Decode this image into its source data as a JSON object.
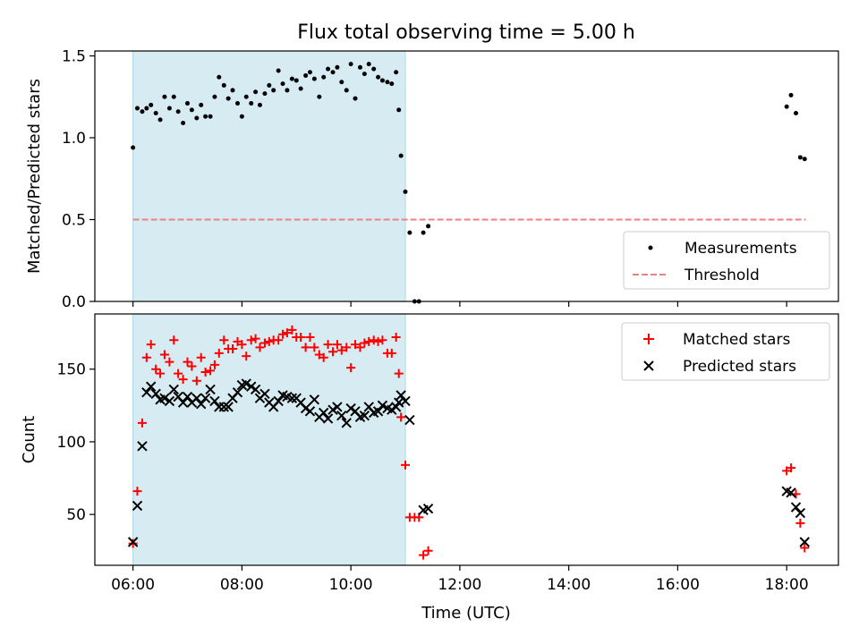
{
  "figure": {
    "title": "Flux total observing time = 5.00 h",
    "xlabel": "Time (UTC)",
    "x_ticks": [
      "06:00",
      "08:00",
      "10:00",
      "12:00",
      "14:00",
      "16:00",
      "18:00"
    ],
    "x_tick_hours": [
      6,
      8,
      10,
      12,
      14,
      16,
      18
    ],
    "xlim_hours": [
      5.3,
      18.95
    ],
    "observing_window_hours": [
      6.0,
      11.0
    ],
    "observing_window_color": "#add8e6"
  },
  "chart_data": [
    {
      "type": "scatter",
      "ylabel": "Matched/Predicted stars",
      "ylim": [
        0,
        1.53
      ],
      "y_ticks": [
        0.0,
        0.5,
        1.0,
        1.5
      ],
      "y_tick_labels": [
        "0.0",
        "0.5",
        "1.0",
        "1.5"
      ],
      "legend": {
        "placement": "lower-right",
        "entries": [
          "Measurements",
          "Threshold"
        ]
      },
      "threshold": {
        "name": "Threshold",
        "value": 0.5,
        "x_range": [
          6.0,
          18.35
        ],
        "color": "#f08080",
        "style": "dashed"
      },
      "series": [
        {
          "name": "Measurements",
          "marker": "dot",
          "color": "#000000",
          "points": [
            [
              6.0,
              0.94
            ],
            [
              6.08,
              1.18
            ],
            [
              6.17,
              1.16
            ],
            [
              6.25,
              1.18
            ],
            [
              6.33,
              1.2
            ],
            [
              6.42,
              1.15
            ],
            [
              6.5,
              1.11
            ],
            [
              6.58,
              1.25
            ],
            [
              6.67,
              1.18
            ],
            [
              6.75,
              1.25
            ],
            [
              6.83,
              1.16
            ],
            [
              6.92,
              1.09
            ],
            [
              7.0,
              1.21
            ],
            [
              7.08,
              1.17
            ],
            [
              7.17,
              1.12
            ],
            [
              7.25,
              1.2
            ],
            [
              7.33,
              1.13
            ],
            [
              7.42,
              1.13
            ],
            [
              7.5,
              1.25
            ],
            [
              7.58,
              1.37
            ],
            [
              7.67,
              1.32
            ],
            [
              7.75,
              1.24
            ],
            [
              7.83,
              1.29
            ],
            [
              7.92,
              1.21
            ],
            [
              8.0,
              1.13
            ],
            [
              8.08,
              1.25
            ],
            [
              8.17,
              1.21
            ],
            [
              8.25,
              1.28
            ],
            [
              8.33,
              1.2
            ],
            [
              8.42,
              1.27
            ],
            [
              8.5,
              1.32
            ],
            [
              8.58,
              1.29
            ],
            [
              8.67,
              1.41
            ],
            [
              8.75,
              1.33
            ],
            [
              8.83,
              1.29
            ],
            [
              8.92,
              1.36
            ],
            [
              9.0,
              1.35
            ],
            [
              9.08,
              1.3
            ],
            [
              9.17,
              1.38
            ],
            [
              9.25,
              1.4
            ],
            [
              9.33,
              1.36
            ],
            [
              9.42,
              1.25
            ],
            [
              9.5,
              1.37
            ],
            [
              9.58,
              1.42
            ],
            [
              9.67,
              1.4
            ],
            [
              9.75,
              1.43
            ],
            [
              9.83,
              1.34
            ],
            [
              9.92,
              1.29
            ],
            [
              10.0,
              1.45
            ],
            [
              10.08,
              1.24
            ],
            [
              10.17,
              1.43
            ],
            [
              10.25,
              1.39
            ],
            [
              10.33,
              1.45
            ],
            [
              10.42,
              1.42
            ],
            [
              10.5,
              1.37
            ],
            [
              10.58,
              1.35
            ],
            [
              10.67,
              1.34
            ],
            [
              10.75,
              1.33
            ],
            [
              10.83,
              1.4
            ],
            [
              10.88,
              1.17
            ],
            [
              10.92,
              0.89
            ],
            [
              11.0,
              0.67
            ],
            [
              11.08,
              0.42
            ],
            [
              11.17,
              0.0
            ],
            [
              11.25,
              0.0
            ],
            [
              11.33,
              0.42
            ],
            [
              11.42,
              0.46
            ],
            [
              18.0,
              1.19
            ],
            [
              18.08,
              1.26
            ],
            [
              18.17,
              1.15
            ],
            [
              18.25,
              0.88
            ],
            [
              18.33,
              0.87
            ]
          ]
        }
      ]
    },
    {
      "type": "scatter",
      "ylabel": "Count",
      "ylim": [
        15,
        188
      ],
      "y_ticks": [
        50,
        100,
        150
      ],
      "y_tick_labels": [
        "50",
        "100",
        "150"
      ],
      "legend": {
        "placement": "top-right",
        "entries": [
          "Matched stars",
          "Predicted stars"
        ]
      },
      "series": [
        {
          "name": "Matched stars",
          "marker": "plus",
          "color": "#ff0000",
          "points": [
            [
              6.0,
              30
            ],
            [
              6.08,
              66
            ],
            [
              6.17,
              113
            ],
            [
              6.25,
              158
            ],
            [
              6.33,
              167
            ],
            [
              6.42,
              150
            ],
            [
              6.5,
              147
            ],
            [
              6.58,
              160
            ],
            [
              6.67,
              155
            ],
            [
              6.75,
              170
            ],
            [
              6.83,
              147
            ],
            [
              6.92,
              143
            ],
            [
              7.0,
              155
            ],
            [
              7.08,
              152
            ],
            [
              7.17,
              142
            ],
            [
              7.25,
              158
            ],
            [
              7.33,
              148
            ],
            [
              7.42,
              149
            ],
            [
              7.5,
              153
            ],
            [
              7.58,
              161
            ],
            [
              7.67,
              170
            ],
            [
              7.75,
              164
            ],
            [
              7.83,
              164
            ],
            [
              7.92,
              169
            ],
            [
              8.0,
              167
            ],
            [
              8.08,
              159
            ],
            [
              8.17,
              170
            ],
            [
              8.25,
              171
            ],
            [
              8.33,
              165
            ],
            [
              8.42,
              168
            ],
            [
              8.5,
              169
            ],
            [
              8.58,
              170
            ],
            [
              8.67,
              170
            ],
            [
              8.75,
              174
            ],
            [
              8.83,
              175
            ],
            [
              8.92,
              177
            ],
            [
              9.0,
              172
            ],
            [
              9.08,
              172
            ],
            [
              9.17,
              165
            ],
            [
              9.25,
              172
            ],
            [
              9.33,
              165
            ],
            [
              9.42,
              160
            ],
            [
              9.5,
              158
            ],
            [
              9.58,
              167
            ],
            [
              9.67,
              162
            ],
            [
              9.75,
              167
            ],
            [
              9.83,
              163
            ],
            [
              9.92,
              165
            ],
            [
              10.0,
              151
            ],
            [
              10.08,
              167
            ],
            [
              10.17,
              165
            ],
            [
              10.25,
              168
            ],
            [
              10.33,
              169
            ],
            [
              10.42,
              170
            ],
            [
              10.5,
              169
            ],
            [
              10.58,
              170
            ],
            [
              10.67,
              161
            ],
            [
              10.75,
              161
            ],
            [
              10.83,
              172
            ],
            [
              10.88,
              147
            ],
            [
              10.92,
              117
            ],
            [
              11.0,
              84
            ],
            [
              11.08,
              48
            ],
            [
              11.17,
              48
            ],
            [
              11.25,
              48
            ],
            [
              11.33,
              22
            ],
            [
              11.42,
              25
            ],
            [
              18.0,
              80
            ],
            [
              18.08,
              82
            ],
            [
              18.17,
              64
            ],
            [
              18.25,
              44
            ],
            [
              18.33,
              27
            ]
          ]
        },
        {
          "name": "Predicted stars",
          "marker": "cross",
          "color": "#000000",
          "points": [
            [
              6.0,
              31
            ],
            [
              6.08,
              56
            ],
            [
              6.17,
              97
            ],
            [
              6.25,
              134
            ],
            [
              6.33,
              138
            ],
            [
              6.42,
              133
            ],
            [
              6.5,
              129
            ],
            [
              6.58,
              130
            ],
            [
              6.67,
              128
            ],
            [
              6.75,
              136
            ],
            [
              6.83,
              131
            ],
            [
              6.92,
              127
            ],
            [
              7.0,
              131
            ],
            [
              7.08,
              127
            ],
            [
              7.17,
              130
            ],
            [
              7.25,
              126
            ],
            [
              7.33,
              130
            ],
            [
              7.42,
              136
            ],
            [
              7.5,
              128
            ],
            [
              7.58,
              124
            ],
            [
              7.67,
              124
            ],
            [
              7.75,
              124
            ],
            [
              7.83,
              130
            ],
            [
              7.92,
              134
            ],
            [
              8.0,
              139
            ],
            [
              8.08,
              140
            ],
            [
              8.17,
              138
            ],
            [
              8.25,
              136
            ],
            [
              8.33,
              130
            ],
            [
              8.42,
              133
            ],
            [
              8.5,
              127
            ],
            [
              8.58,
              124
            ],
            [
              8.67,
              128
            ],
            [
              8.75,
              132
            ],
            [
              8.83,
              131
            ],
            [
              8.92,
              130
            ],
            [
              9.0,
              130
            ],
            [
              9.08,
              127
            ],
            [
              9.17,
              123
            ],
            [
              9.25,
              121
            ],
            [
              9.33,
              129
            ],
            [
              9.42,
              117
            ],
            [
              9.5,
              120
            ],
            [
              9.58,
              116
            ],
            [
              9.67,
              122
            ],
            [
              9.75,
              124
            ],
            [
              9.83,
              118
            ],
            [
              9.92,
              113
            ],
            [
              10.0,
              123
            ],
            [
              10.08,
              121
            ],
            [
              10.17,
              117
            ],
            [
              10.25,
              118
            ],
            [
              10.33,
              124
            ],
            [
              10.42,
              120
            ],
            [
              10.5,
              121
            ],
            [
              10.58,
              125
            ],
            [
              10.67,
              123
            ],
            [
              10.75,
              122
            ],
            [
              10.83,
              124
            ],
            [
              10.88,
              127
            ],
            [
              10.92,
              132
            ],
            [
              11.0,
              128
            ],
            [
              11.08,
              115
            ],
            [
              11.33,
              53
            ],
            [
              11.42,
              54
            ],
            [
              18.0,
              66
            ],
            [
              18.08,
              65
            ],
            [
              18.17,
              55
            ],
            [
              18.25,
              51
            ],
            [
              18.33,
              31
            ]
          ]
        }
      ]
    }
  ]
}
